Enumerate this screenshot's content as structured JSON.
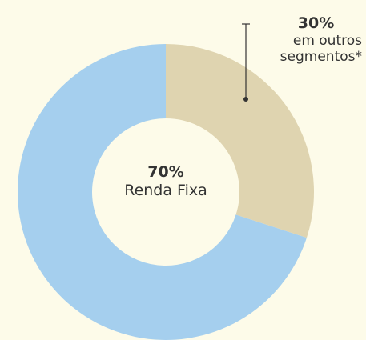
{
  "chart_data": {
    "type": "donut",
    "categories": [
      "em outros segmentos*",
      "Renda Fixa"
    ],
    "values": [
      30,
      70
    ],
    "value_labels": [
      "30%",
      "70%"
    ],
    "colors": [
      "#dfd4b0",
      "#a5cfee"
    ]
  }
}
